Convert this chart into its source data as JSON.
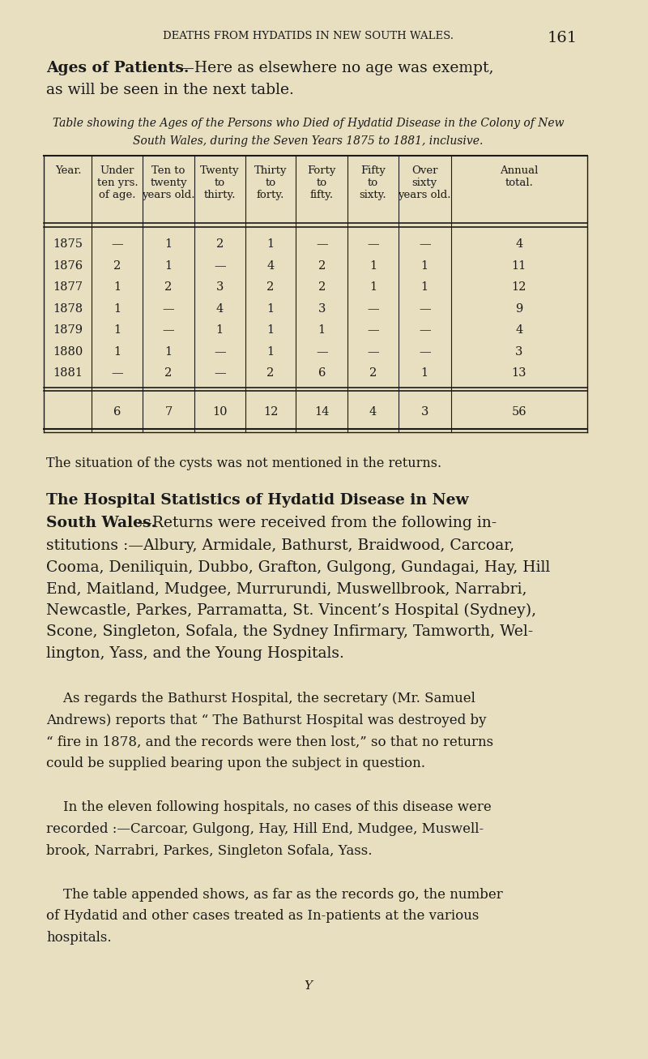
{
  "bg_color": "#e8dfc0",
  "page_width": 8.0,
  "page_height": 13.06,
  "header_text": "DEATHS FROM HYDATIDS IN NEW SOUTH WALES.",
  "header_page_num": "161",
  "table_data": [
    [
      "1875",
      "—",
      "1",
      "2",
      "1",
      "—",
      "—",
      "—",
      "4"
    ],
    [
      "1876",
      "2",
      "1",
      "—",
      "4",
      "2",
      "1",
      "1",
      "11"
    ],
    [
      "1877",
      "1",
      "2",
      "3",
      "2",
      "2",
      "1",
      "1",
      "12"
    ],
    [
      "1878",
      "1",
      "—",
      "4",
      "1",
      "3",
      "—",
      "—",
      "9"
    ],
    [
      "1879",
      "1",
      "—",
      "1",
      "1",
      "1",
      "—",
      "—",
      "4"
    ],
    [
      "1880",
      "1",
      "1",
      "—",
      "1",
      "—",
      "—",
      "—",
      "3"
    ],
    [
      "1881",
      "—",
      "2",
      "—",
      "2",
      "6",
      "2",
      "1",
      "13"
    ],
    [
      "",
      "6",
      "7",
      "10",
      "12",
      "14",
      "4",
      "3",
      "56"
    ]
  ],
  "situation_text": "The situation of the cysts was not mentioned in the returns.",
  "footer_char": "Y"
}
